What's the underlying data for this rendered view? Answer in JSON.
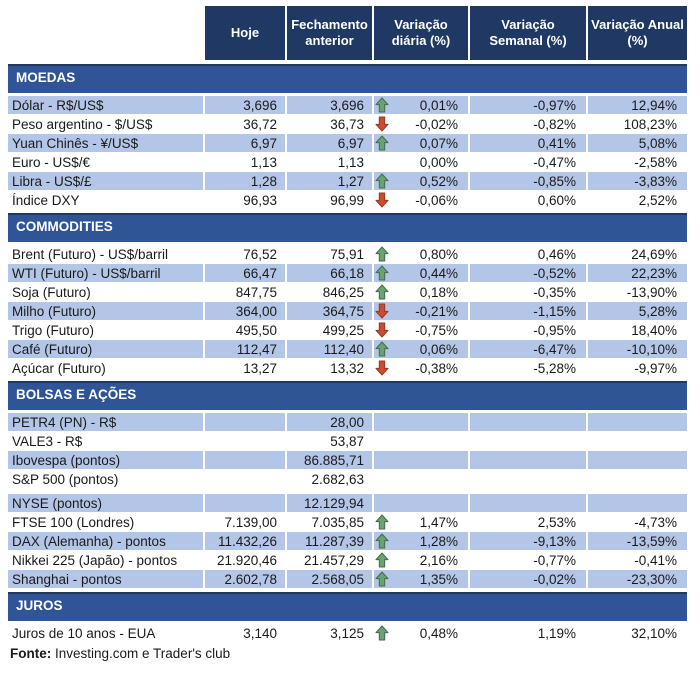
{
  "colors": {
    "header_bg": "#1F3864",
    "section_band_bg": "#2F5597",
    "shaded_row_bg": "#B4C6E7",
    "arrow_up_green": "#6BA272",
    "arrow_down_red": "#CC4B31"
  },
  "table": {
    "columns": [
      "Hoje",
      "Fechamento anterior",
      "Variação diária (%)",
      "Variação Semanal (%)",
      "Variação Anual (%)"
    ],
    "sections": [
      {
        "title": "MOEDAS",
        "rows": [
          {
            "label": "Dólar - R$/US$",
            "hoje": "3,696",
            "anterior": "3,696",
            "arrow": "up",
            "daily": "0,01%",
            "weekly": "-0,97%",
            "annual": "12,94%",
            "shaded": true
          },
          {
            "label": "Peso argentino - $/US$",
            "hoje": "36,72",
            "anterior": "36,73",
            "arrow": "down",
            "daily": "-0,02%",
            "weekly": "-0,82%",
            "annual": "108,23%",
            "shaded": false
          },
          {
            "label": "Yuan Chinês - ¥/US$",
            "hoje": "6,97",
            "anterior": "6,97",
            "arrow": "up",
            "daily": "0,07%",
            "weekly": "0,41%",
            "annual": "5,08%",
            "shaded": true
          },
          {
            "label": "Euro - US$/€",
            "hoje": "1,13",
            "anterior": "1,13",
            "arrow": "none",
            "daily": "0,00%",
            "weekly": "-0,47%",
            "annual": "-2,58%",
            "shaded": false
          },
          {
            "label": "Libra - US$/£",
            "hoje": "1,28",
            "anterior": "1,27",
            "arrow": "up",
            "daily": "0,52%",
            "weekly": "-0,85%",
            "annual": "-3,83%",
            "shaded": true
          },
          {
            "label": "Índice DXY",
            "hoje": "96,93",
            "anterior": "96,99",
            "arrow": "down",
            "daily": "-0,06%",
            "weekly": "0,60%",
            "annual": "2,52%",
            "shaded": false
          }
        ]
      },
      {
        "title": "COMMODITIES",
        "rows": [
          {
            "label": "Brent (Futuro) - US$/barril",
            "hoje": "76,52",
            "anterior": "75,91",
            "arrow": "up",
            "daily": "0,80%",
            "weekly": "0,46%",
            "annual": "24,69%",
            "shaded": false
          },
          {
            "label": "WTI (Futuro) - US$/barril",
            "hoje": "66,47",
            "anterior": "66,18",
            "arrow": "up",
            "daily": "0,44%",
            "weekly": "-0,52%",
            "annual": "22,23%",
            "shaded": true
          },
          {
            "label": "Soja (Futuro)",
            "hoje": "847,75",
            "anterior": "846,25",
            "arrow": "up",
            "daily": "0,18%",
            "weekly": "-0,35%",
            "annual": "-13,90%",
            "shaded": false
          },
          {
            "label": "Milho (Futuro)",
            "hoje": "364,00",
            "anterior": "364,75",
            "arrow": "down",
            "daily": "-0,21%",
            "weekly": "-1,15%",
            "annual": "5,28%",
            "shaded": true
          },
          {
            "label": "Trigo (Futuro)",
            "hoje": "495,50",
            "anterior": "499,25",
            "arrow": "down",
            "daily": "-0,75%",
            "weekly": "-0,95%",
            "annual": "18,40%",
            "shaded": false
          },
          {
            "label": "Café (Futuro)",
            "hoje": "112,47",
            "anterior": "112,40",
            "arrow": "up",
            "daily": "0,06%",
            "weekly": "-6,47%",
            "annual": "-10,10%",
            "shaded": true
          },
          {
            "label": "Açúcar (Futuro)",
            "hoje": "13,27",
            "anterior": "13,32",
            "arrow": "down",
            "daily": "-0,38%",
            "weekly": "-5,28%",
            "annual": "-9,97%",
            "shaded": false
          }
        ]
      },
      {
        "title": "BOLSAS E AÇÕES",
        "rows": [
          {
            "label": "PETR4 (PN) - R$",
            "hoje": "",
            "anterior": "28,00",
            "arrow": "none",
            "daily": "",
            "weekly": "",
            "annual": "",
            "shaded": true
          },
          {
            "label": "VALE3 - R$",
            "hoje": "",
            "anterior": "53,87",
            "arrow": "none",
            "daily": "",
            "weekly": "",
            "annual": "",
            "shaded": false
          },
          {
            "label": "Ibovespa (pontos)",
            "hoje": "",
            "anterior": "86.885,71",
            "arrow": "none",
            "daily": "",
            "weekly": "",
            "annual": "",
            "shaded": true
          },
          {
            "label": "S&P 500 (pontos)",
            "hoje": "",
            "anterior": "2.682,63",
            "arrow": "none",
            "daily": "",
            "weekly": "",
            "annual": "",
            "shaded": false,
            "gap_after": true
          },
          {
            "label": "NYSE (pontos)",
            "hoje": "",
            "anterior": "12.129,94",
            "arrow": "none",
            "daily": "",
            "weekly": "",
            "annual": "",
            "shaded": true
          },
          {
            "label": "FTSE 100 (Londres)",
            "hoje": "7.139,00",
            "anterior": "7.035,85",
            "arrow": "up",
            "daily": "1,47%",
            "weekly": "2,53%",
            "annual": "-4,73%",
            "shaded": false
          },
          {
            "label": "DAX (Alemanha) - pontos",
            "hoje": "11.432,26",
            "anterior": "11.287,39",
            "arrow": "up",
            "daily": "1,28%",
            "weekly": "-9,13%",
            "annual": "-13,59%",
            "shaded": true
          },
          {
            "label": "Nikkei 225 (Japão) - pontos",
            "hoje": "21.920,46",
            "anterior": "21.457,29",
            "arrow": "up",
            "daily": "2,16%",
            "weekly": "-0,77%",
            "annual": "-0,41%",
            "shaded": false
          },
          {
            "label": "Shanghai - pontos",
            "hoje": "2.602,78",
            "anterior": "2.568,05",
            "arrow": "up",
            "daily": "1,35%",
            "weekly": "-0,02%",
            "annual": "-23,30%",
            "shaded": true
          }
        ]
      },
      {
        "title": "JUROS",
        "rows": [
          {
            "label": "Juros de 10 anos - EUA",
            "hoje": "3,140",
            "anterior": "3,125",
            "arrow": "up",
            "daily": "0,48%",
            "weekly": "1,19%",
            "annual": "32,10%",
            "shaded": false
          }
        ]
      }
    ]
  },
  "footer": {
    "label": "Fonte:",
    "text": " Investing.com e Trader's club"
  }
}
